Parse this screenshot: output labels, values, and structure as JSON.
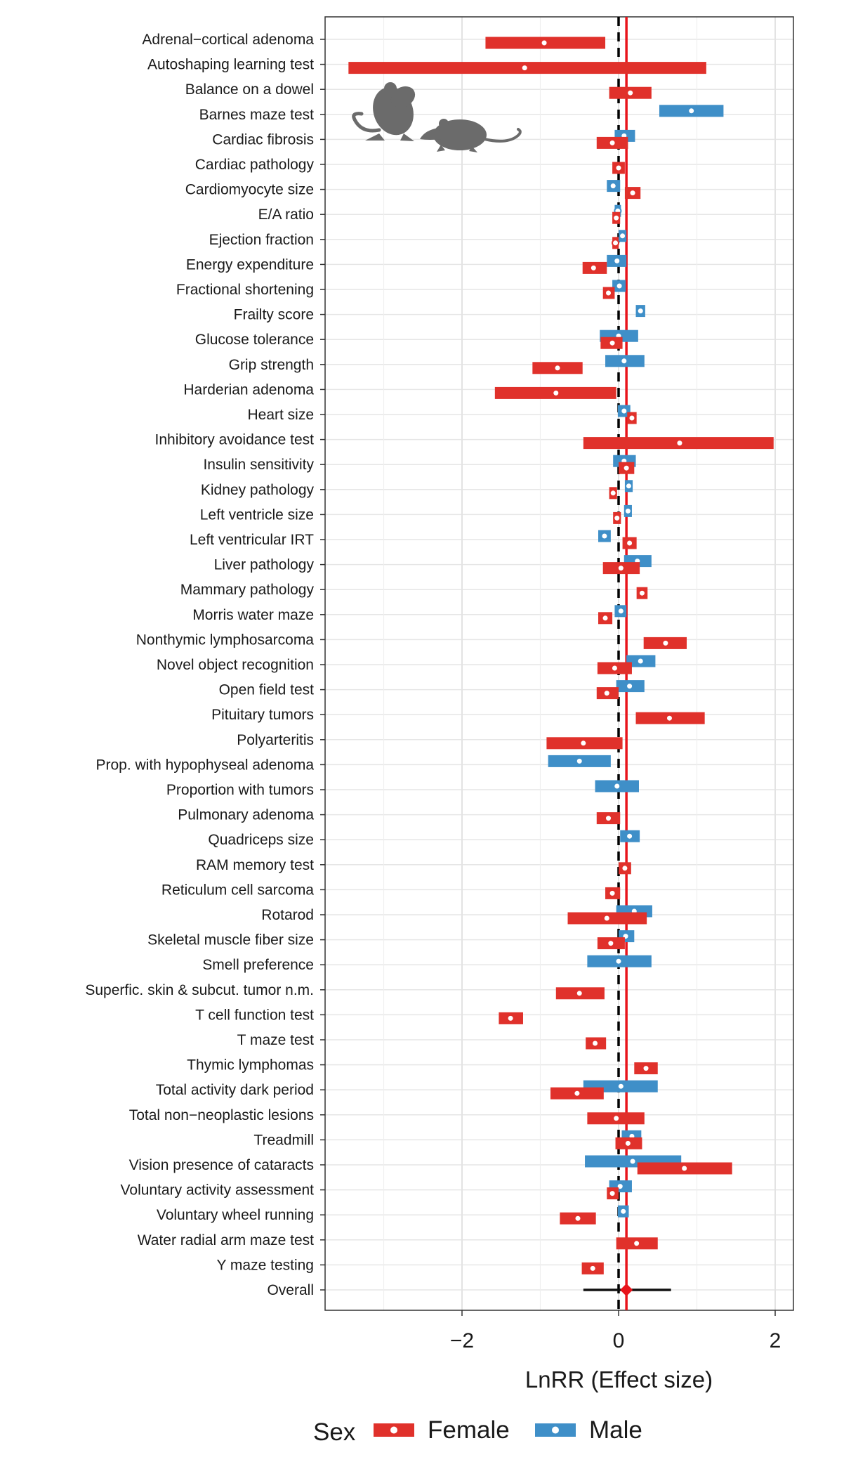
{
  "chart_data": {
    "type": "forest",
    "xlabel": "LnRR (Effect size)",
    "xlim": [
      -3.8,
      2.3
    ],
    "xticks": [
      -2,
      0,
      2
    ],
    "xtick_labels": [
      "−2",
      "0",
      "2"
    ],
    "grid": true,
    "overall_estimate": 0.1,
    "reference_line": 0,
    "legend": {
      "title": "Sex",
      "position": "bottom",
      "items": [
        {
          "name": "Female",
          "color": "#E0312B"
        },
        {
          "name": "Male",
          "color": "#3F8FC8"
        }
      ]
    },
    "colors": {
      "female": "#E0312B",
      "male": "#3F8FC8",
      "overall": "#111111",
      "overall_point": "#E8141B",
      "reference": "#000000",
      "estimate_line": "#E8141B"
    },
    "icon": "rodents-icon",
    "categories": [
      "Adrenal−cortical adenoma",
      "Autoshaping learning test",
      "Balance on a dowel",
      "Barnes maze test",
      "Cardiac fibrosis",
      "Cardiac pathology",
      "Cardiomyocyte size",
      "E/A ratio",
      "Ejection fraction",
      "Energy expenditure",
      "Fractional shortening",
      "Frailty score",
      "Glucose tolerance",
      "Grip strength",
      "Harderian adenoma",
      "Heart size",
      "Inhibitory avoidance test",
      "Insulin sensitivity",
      "Kidney pathology",
      "Left ventricle size",
      "Left ventricular IRT",
      "Liver pathology",
      "Mammary pathology",
      "Morris water maze",
      "Nonthymic lymphosarcoma",
      "Novel object recognition",
      "Open field test",
      "Pituitary tumors",
      "Polyarteritis",
      "Prop. with hypophyseal adenoma",
      "Proportion with tumors",
      "Pulmonary adenoma",
      "Quadriceps size",
      "RAM memory test",
      "Reticulum cell sarcoma",
      "Rotarod",
      "Skeletal muscle fiber size",
      "Smell preference",
      "Superfic. skin & subcut. tumor n.m.",
      "T cell function test",
      "T maze test",
      "Thymic lymphomas",
      "Total activity dark period",
      "Total non−neoplastic lesions",
      "Treadmill",
      "Vision presence of cataracts",
      "Voluntary activity assessment",
      "Voluntary wheel running",
      "Water radial arm maze test",
      "Y maze testing",
      "Overall"
    ],
    "series": [
      {
        "name": "Female",
        "points": [
          {
            "cat": "Adrenal−cortical adenoma",
            "est": -0.95,
            "lo": -1.7,
            "hi": -0.17
          },
          {
            "cat": "Autoshaping learning test",
            "est": -1.2,
            "lo": -3.45,
            "hi": 1.12
          },
          {
            "cat": "Balance on a dowel",
            "est": 0.15,
            "lo": -0.12,
            "hi": 0.42
          },
          {
            "cat": "Cardiac fibrosis",
            "est": -0.08,
            "lo": -0.28,
            "hi": 0.12
          },
          {
            "cat": "Cardiac pathology",
            "est": 0.0,
            "lo": -0.08,
            "hi": 0.08
          },
          {
            "cat": "Cardiomyocyte size",
            "est": 0.18,
            "lo": 0.08,
            "hi": 0.28
          },
          {
            "cat": "E/A ratio",
            "est": -0.03,
            "lo": -0.08,
            "hi": 0.02
          },
          {
            "cat": "Ejection fraction",
            "est": -0.04,
            "lo": -0.08,
            "hi": 0.0
          },
          {
            "cat": "Energy expenditure",
            "est": -0.32,
            "lo": -0.46,
            "hi": -0.15
          },
          {
            "cat": "Fractional shortening",
            "est": -0.13,
            "lo": -0.2,
            "hi": -0.05
          },
          {
            "cat": "Glucose tolerance",
            "est": -0.08,
            "lo": -0.23,
            "hi": 0.05
          },
          {
            "cat": "Grip strength",
            "est": -0.78,
            "lo": -1.1,
            "hi": -0.46
          },
          {
            "cat": "Harderian adenoma",
            "est": -0.8,
            "lo": -1.58,
            "hi": -0.03
          },
          {
            "cat": "Heart size",
            "est": 0.17,
            "lo": 0.11,
            "hi": 0.23
          },
          {
            "cat": "Inhibitory avoidance test",
            "est": 0.78,
            "lo": -0.45,
            "hi": 1.98
          },
          {
            "cat": "Insulin sensitivity",
            "est": 0.1,
            "lo": 0.0,
            "hi": 0.2
          },
          {
            "cat": "Kidney pathology",
            "est": -0.07,
            "lo": -0.12,
            "hi": -0.02
          },
          {
            "cat": "Left ventricle size",
            "est": -0.02,
            "lo": -0.07,
            "hi": 0.03
          },
          {
            "cat": "Left ventricular IRT",
            "est": 0.14,
            "lo": 0.05,
            "hi": 0.23
          },
          {
            "cat": "Liver pathology",
            "est": 0.03,
            "lo": -0.2,
            "hi": 0.27
          },
          {
            "cat": "Mammary pathology",
            "est": 0.3,
            "lo": 0.23,
            "hi": 0.37
          },
          {
            "cat": "Morris water maze",
            "est": -0.17,
            "lo": -0.26,
            "hi": -0.08
          },
          {
            "cat": "Nonthymic lymphosarcoma",
            "est": 0.6,
            "lo": 0.32,
            "hi": 0.87
          },
          {
            "cat": "Novel object recognition",
            "est": -0.05,
            "lo": -0.27,
            "hi": 0.17
          },
          {
            "cat": "Open field test",
            "est": -0.15,
            "lo": -0.28,
            "hi": 0.0
          },
          {
            "cat": "Pituitary tumors",
            "est": 0.65,
            "lo": 0.22,
            "hi": 1.1
          },
          {
            "cat": "Polyarteritis",
            "est": -0.45,
            "lo": -0.92,
            "hi": 0.05
          },
          {
            "cat": "Pulmonary adenoma",
            "est": -0.13,
            "lo": -0.28,
            "hi": 0.02
          },
          {
            "cat": "RAM memory test",
            "est": 0.08,
            "lo": 0.0,
            "hi": 0.16
          },
          {
            "cat": "Reticulum cell sarcoma",
            "est": -0.08,
            "lo": -0.17,
            "hi": 0.02
          },
          {
            "cat": "Rotarod",
            "est": -0.15,
            "lo": -0.65,
            "hi": 0.36
          },
          {
            "cat": "Skeletal muscle fiber size",
            "est": -0.1,
            "lo": -0.27,
            "hi": 0.08
          },
          {
            "cat": "Superfic. skin & subcut. tumor n.m.",
            "est": -0.5,
            "lo": -0.8,
            "hi": -0.18
          },
          {
            "cat": "T cell function test",
            "est": -1.38,
            "lo": -1.53,
            "hi": -1.22
          },
          {
            "cat": "T maze test",
            "est": -0.3,
            "lo": -0.42,
            "hi": -0.16
          },
          {
            "cat": "Thymic lymphomas",
            "est": 0.35,
            "lo": 0.2,
            "hi": 0.5
          },
          {
            "cat": "Total activity dark period",
            "est": -0.53,
            "lo": -0.87,
            "hi": -0.19
          },
          {
            "cat": "Total non−neoplastic lesions",
            "est": -0.03,
            "lo": -0.4,
            "hi": 0.33
          },
          {
            "cat": "Treadmill",
            "est": 0.12,
            "lo": -0.04,
            "hi": 0.3
          },
          {
            "cat": "Vision presence of cataracts",
            "est": 0.84,
            "lo": 0.24,
            "hi": 1.45
          },
          {
            "cat": "Voluntary activity assessment",
            "est": -0.08,
            "lo": -0.15,
            "hi": 0.0
          },
          {
            "cat": "Voluntary wheel running",
            "est": -0.52,
            "lo": -0.75,
            "hi": -0.29
          },
          {
            "cat": "Water radial arm maze test",
            "est": 0.23,
            "lo": -0.03,
            "hi": 0.5
          },
          {
            "cat": "Y maze testing",
            "est": -0.33,
            "lo": -0.47,
            "hi": -0.19
          }
        ]
      },
      {
        "name": "Male",
        "points": [
          {
            "cat": "Barnes maze test",
            "est": 0.93,
            "lo": 0.52,
            "hi": 1.34
          },
          {
            "cat": "Cardiac fibrosis",
            "est": 0.07,
            "lo": -0.05,
            "hi": 0.21
          },
          {
            "cat": "Cardiomyocyte size",
            "est": -0.07,
            "lo": -0.15,
            "hi": 0.02
          },
          {
            "cat": "E/A ratio",
            "est": -0.01,
            "lo": -0.05,
            "hi": 0.03
          },
          {
            "cat": "Ejection fraction",
            "est": 0.05,
            "lo": 0.0,
            "hi": 0.1
          },
          {
            "cat": "Energy expenditure",
            "est": -0.02,
            "lo": -0.15,
            "hi": 0.1
          },
          {
            "cat": "Fractional shortening",
            "est": 0.01,
            "lo": -0.08,
            "hi": 0.09
          },
          {
            "cat": "Frailty score",
            "est": 0.28,
            "lo": 0.22,
            "hi": 0.34
          },
          {
            "cat": "Glucose tolerance",
            "est": 0.0,
            "lo": -0.24,
            "hi": 0.25
          },
          {
            "cat": "Grip strength",
            "est": 0.07,
            "lo": -0.17,
            "hi": 0.33
          },
          {
            "cat": "Heart size",
            "est": 0.07,
            "lo": -0.01,
            "hi": 0.15
          },
          {
            "cat": "Insulin sensitivity",
            "est": 0.07,
            "lo": -0.07,
            "hi": 0.22
          },
          {
            "cat": "Kidney pathology",
            "est": 0.13,
            "lo": 0.08,
            "hi": 0.18
          },
          {
            "cat": "Left ventricle size",
            "est": 0.12,
            "lo": 0.07,
            "hi": 0.17
          },
          {
            "cat": "Left ventricular IRT",
            "est": -0.18,
            "lo": -0.26,
            "hi": -0.1
          },
          {
            "cat": "Liver pathology",
            "est": 0.24,
            "lo": 0.07,
            "hi": 0.42
          },
          {
            "cat": "Morris water maze",
            "est": 0.03,
            "lo": -0.05,
            "hi": 0.1
          },
          {
            "cat": "Novel object recognition",
            "est": 0.28,
            "lo": 0.1,
            "hi": 0.47
          },
          {
            "cat": "Open field test",
            "est": 0.14,
            "lo": -0.03,
            "hi": 0.33
          },
          {
            "cat": "Prop. with hypophyseal adenoma",
            "est": -0.5,
            "lo": -0.9,
            "hi": -0.1
          },
          {
            "cat": "Proportion with tumors",
            "est": -0.02,
            "lo": -0.3,
            "hi": 0.26
          },
          {
            "cat": "Quadriceps size",
            "est": 0.14,
            "lo": 0.02,
            "hi": 0.27
          },
          {
            "cat": "Rotarod",
            "est": 0.2,
            "lo": -0.03,
            "hi": 0.43
          },
          {
            "cat": "Skeletal muscle fiber size",
            "est": 0.09,
            "lo": 0.0,
            "hi": 0.2
          },
          {
            "cat": "Smell preference",
            "est": 0.0,
            "lo": -0.4,
            "hi": 0.42
          },
          {
            "cat": "Total activity dark period",
            "est": 0.03,
            "lo": -0.45,
            "hi": 0.5
          },
          {
            "cat": "Treadmill",
            "est": 0.17,
            "lo": 0.04,
            "hi": 0.29
          },
          {
            "cat": "Vision presence of cataracts",
            "est": 0.18,
            "lo": -0.43,
            "hi": 0.8
          },
          {
            "cat": "Voluntary activity assessment",
            "est": 0.02,
            "lo": -0.12,
            "hi": 0.17
          },
          {
            "cat": "Voluntary wheel running",
            "est": 0.06,
            "lo": -0.01,
            "hi": 0.13
          }
        ]
      }
    ],
    "overall": {
      "est": 0.1,
      "lo": -0.45,
      "hi": 0.67
    }
  }
}
